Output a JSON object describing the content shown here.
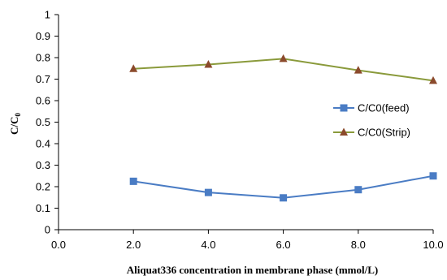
{
  "chart_data": {
    "type": "line",
    "xlabel": "Aliquat336 concentration in membrane phase (mmol/L)",
    "ylabel_main": "C/C",
    "ylabel_sub": "0",
    "xlim": [
      0,
      10
    ],
    "ylim": [
      0,
      1
    ],
    "x_tick_values": [
      0,
      2,
      4,
      6,
      8,
      10
    ],
    "x_tick_labels": [
      "0.0",
      "2.0",
      "4.0",
      "6.0",
      "8.0",
      "10.0"
    ],
    "y_tick_values": [
      0,
      0.1,
      0.2,
      0.3,
      0.4,
      0.5,
      0.6,
      0.7,
      0.8,
      0.9,
      1
    ],
    "y_tick_labels": [
      "0",
      "0.1",
      "0.2",
      "0.3",
      "0.4",
      "0.5",
      "0.6",
      "0.7",
      "0.8",
      "0.9",
      "1"
    ],
    "grid": false,
    "legend_position": "right",
    "x": [
      2,
      4,
      6,
      8,
      10
    ],
    "series": [
      {
        "name": "C/C0(feed)",
        "values": [
          0.225,
          0.173,
          0.148,
          0.186,
          0.25
        ],
        "color": "#4a7cc4",
        "marker": "square"
      },
      {
        "name": "C/C0(Strip)",
        "values": [
          0.748,
          0.768,
          0.795,
          0.741,
          0.693
        ],
        "color": "#8a9a3b",
        "markerColor": "#8b4a2c",
        "marker": "triangle"
      }
    ]
  }
}
